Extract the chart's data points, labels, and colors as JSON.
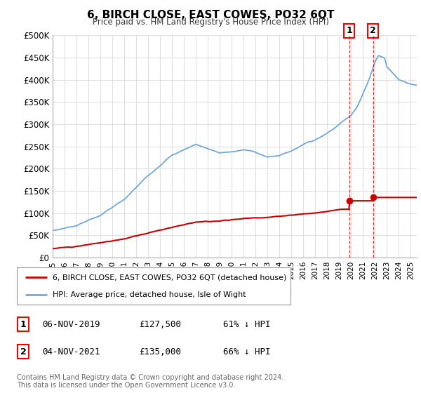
{
  "title": "6, BIRCH CLOSE, EAST COWES, PO32 6QT",
  "subtitle": "Price paid vs. HM Land Registry's House Price Index (HPI)",
  "ylabel_ticks": [
    "£0",
    "£50K",
    "£100K",
    "£150K",
    "£200K",
    "£250K",
    "£300K",
    "£350K",
    "£400K",
    "£450K",
    "£500K"
  ],
  "ytick_values": [
    0,
    50000,
    100000,
    150000,
    200000,
    250000,
    300000,
    350000,
    400000,
    450000,
    500000
  ],
  "ylim": [
    0,
    500000
  ],
  "hpi_color": "#6fa8dc",
  "price_color": "#cc0000",
  "marker_color": "#cc0000",
  "vline_color": "#cc0000",
  "legend_label_price": "6, BIRCH CLOSE, EAST COWES, PO32 6QT (detached house)",
  "legend_label_hpi": "HPI: Average price, detached house, Isle of Wight",
  "transaction1_date": "06-NOV-2019",
  "transaction1_price": "£127,500",
  "transaction1_pct": "61% ↓ HPI",
  "transaction2_date": "04-NOV-2021",
  "transaction2_price": "£135,000",
  "transaction2_pct": "66% ↓ HPI",
  "footer": "Contains HM Land Registry data © Crown copyright and database right 2024.\nThis data is licensed under the Open Government Licence v3.0.",
  "background_color": "#ffffff",
  "grid_color": "#e0e0e0",
  "xlim_start": 1995,
  "xlim_end": 2025.5,
  "t1_x": 2019.833,
  "t1_y": 127500,
  "t2_x": 2021.833,
  "t2_y": 135000
}
